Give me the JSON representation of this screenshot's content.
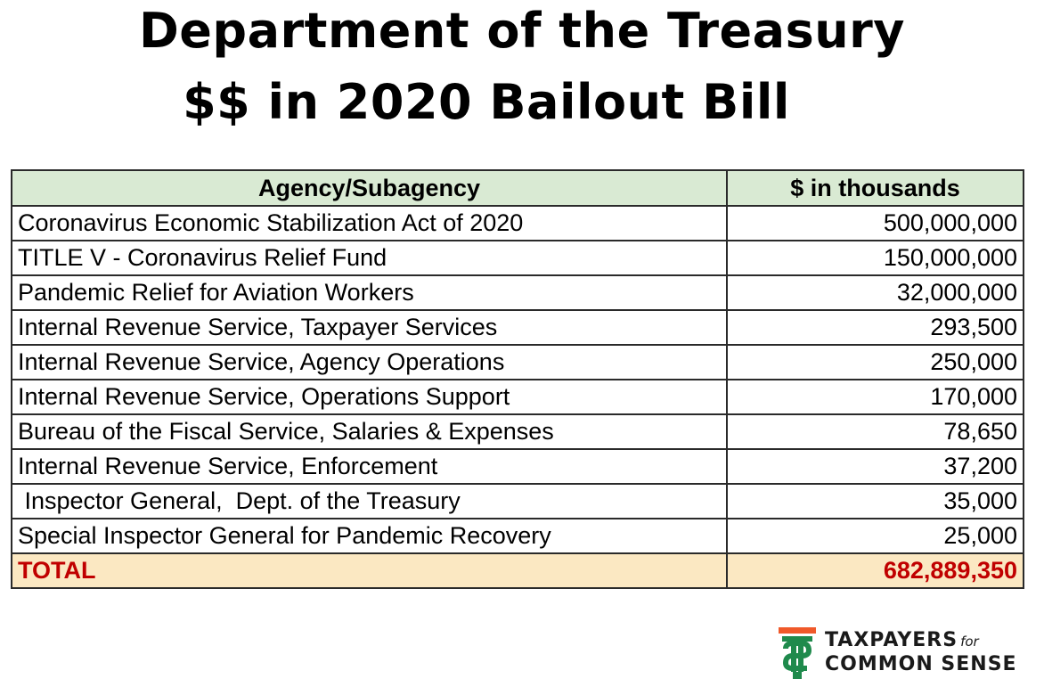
{
  "title": {
    "line1": "Department of the Treasury",
    "line2": "$$ in 2020 Bailout Bill"
  },
  "table": {
    "headers": [
      "Agency/Subagency",
      "$ in thousands"
    ],
    "rows": [
      {
        "agency": "Coronavirus Economic Stabilization Act of 2020",
        "amount": "500,000,000"
      },
      {
        "agency": "TITLE V - Coronavirus Relief Fund",
        "amount": "150,000,000"
      },
      {
        "agency": "Pandemic Relief for Aviation Workers",
        "amount": "32,000,000"
      },
      {
        "agency": "Internal Revenue Service, Taxpayer Services",
        "amount": "293,500"
      },
      {
        "agency": "Internal Revenue Service, Agency Operations",
        "amount": "250,000"
      },
      {
        "agency": "Internal Revenue Service, Operations Support",
        "amount": "170,000"
      },
      {
        "agency": "Bureau of the Fiscal Service, Salaries & Expenses",
        "amount": "78,650"
      },
      {
        "agency": "Internal Revenue Service, Enforcement",
        "amount": "37,200"
      },
      {
        "agency": " Inspector General,  Dept. of the Treasury",
        "amount": "35,000"
      },
      {
        "agency": "Special Inspector General for Pandemic Recovery",
        "amount": "25,000"
      }
    ],
    "total": {
      "label": "TOTAL",
      "amount": "682,889,350"
    }
  },
  "logo": {
    "line1": "TAXPAYERS",
    "line1_small": "for",
    "line2": "COMMON SENSE",
    "icon": "taxpayers-dollar-logo-icon",
    "colors": {
      "orange": "#f0592a",
      "green": "#1f8a4c",
      "total_red": "#c00000",
      "header_green": "#d9ead3",
      "total_bg": "#fbe8c2"
    }
  }
}
